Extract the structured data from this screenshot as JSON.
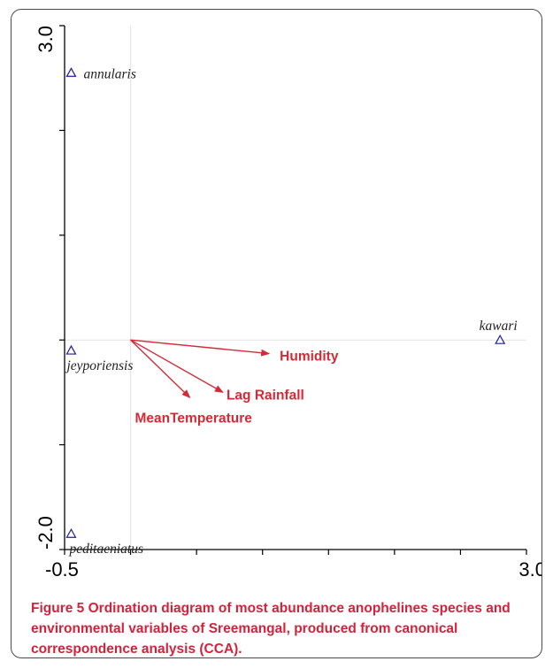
{
  "chart_data": {
    "type": "scatter",
    "xlim": [
      -0.5,
      3.0
    ],
    "ylim": [
      -2.0,
      3.0
    ],
    "x_tick_labels": [
      "-0.5",
      "3.0"
    ],
    "y_tick_labels": [
      "-2.0",
      "3.0"
    ],
    "origin": [
      0.0,
      0.0
    ],
    "species": [
      {
        "label": "annularis",
        "x": -0.45,
        "y": 2.55
      },
      {
        "label": "kawari",
        "x": 2.8,
        "y": 0.0
      },
      {
        "label": "jeyporiensis",
        "x": -0.45,
        "y": -0.1
      },
      {
        "label": "peditaeniatus",
        "x": -0.45,
        "y": -1.85
      }
    ],
    "environmental_vectors": [
      {
        "label": "Humidity",
        "x": 1.05,
        "y": -0.13
      },
      {
        "label": "Lag Rainfall",
        "x": 0.7,
        "y": -0.5
      },
      {
        "label": "MeanTemperature",
        "x": 0.45,
        "y": -0.55
      }
    ],
    "colors": {
      "species_marker": "#1e1e9e",
      "vector": "#d42a36",
      "axis": "#000000",
      "zero_line": "#e2e2e2"
    }
  },
  "caption": {
    "label": "Figure 5",
    "text": " Ordination diagram of most abundance anophelines species and environmental variables of Sreemangal, produced from canonical correspondence analysis (CCA)."
  }
}
